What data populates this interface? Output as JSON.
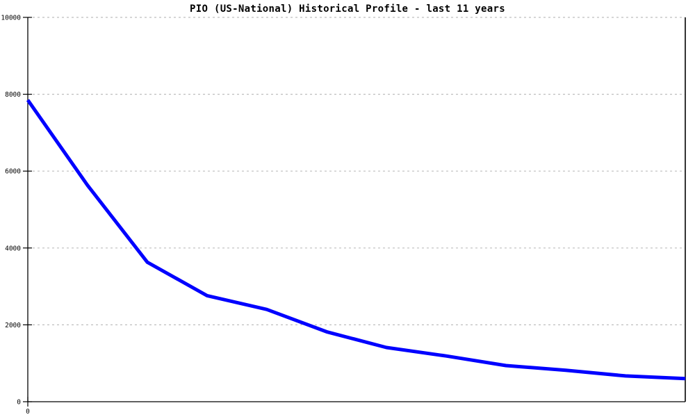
{
  "page": {
    "background": "#ffffff"
  },
  "colors": {
    "line": "#0000ff",
    "grid": "#bdbdbd",
    "axis": "#000000",
    "text": "#000000"
  },
  "chart_data": {
    "type": "line",
    "title": "PIO (US-National) Historical Profile - last 11 years",
    "x": [
      0,
      1,
      2,
      3,
      4,
      5,
      6,
      7,
      8,
      9,
      10,
      11
    ],
    "values": [
      7850,
      5630,
      3630,
      2760,
      2400,
      1820,
      1410,
      1190,
      940,
      820,
      670,
      600
    ],
    "xlabel": "",
    "ylabel": "",
    "xlim": [
      0,
      11
    ],
    "ylim": [
      0,
      10000
    ],
    "y_ticks": [
      0,
      2000,
      4000,
      6000,
      8000,
      10000
    ],
    "x_ticks": [
      {
        "pos": 0,
        "label": "0"
      }
    ],
    "grid": "horizontal dashed",
    "legend": false,
    "line_color": "#0000ff",
    "line_width": 5
  }
}
